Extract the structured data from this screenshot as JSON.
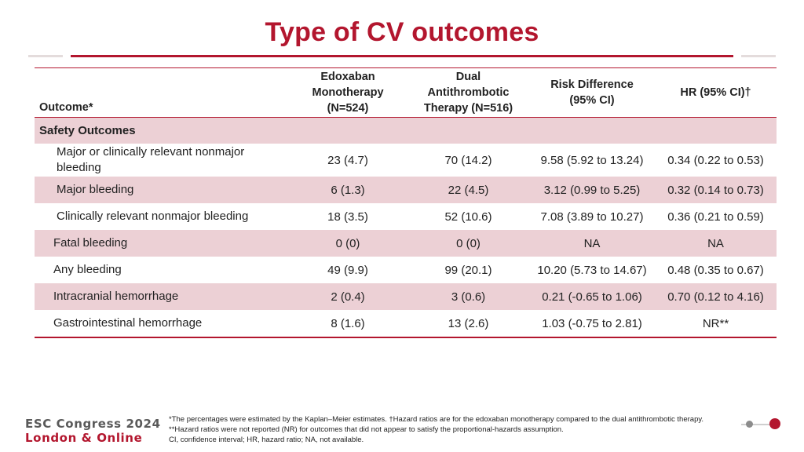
{
  "title": "Type of CV outcomes",
  "headers": {
    "outcome": "Outcome*",
    "edoxaban": [
      "Edoxaban",
      "Monotherapy",
      "(N=524)"
    ],
    "dat": [
      "Dual",
      "Antithrombotic",
      "Therapy (N=516)"
    ],
    "risk": [
      "Risk Difference",
      "(95% CI)"
    ],
    "hr": "HR (95% CI)†"
  },
  "section": "Safety Outcomes",
  "rows": [
    {
      "outcome": "Major or clinically relevant nonmajor bleeding",
      "edoxaban": "23 (4.7)",
      "dat": "70 (14.2)",
      "risk": "9.58 (5.92 to 13.24)",
      "hr": "0.34 (0.22 to 0.53)"
    },
    {
      "outcome": "Major bleeding",
      "edoxaban": "6 (1.3)",
      "dat": "22 (4.5)",
      "risk": "3.12 (0.99 to 5.25)",
      "hr": "0.32 (0.14 to 0.73)"
    },
    {
      "outcome": "Clinically relevant nonmajor bleeding",
      "edoxaban": "18 (3.5)",
      "dat": "52 (10.6)",
      "risk": "7.08 (3.89 to 10.27)",
      "hr": "0.36 (0.21 to 0.59)"
    },
    {
      "outcome": "Fatal bleeding",
      "edoxaban": "0 (0)",
      "dat": "0 (0)",
      "risk": "NA",
      "hr": "NA"
    },
    {
      "outcome": "Any bleeding",
      "edoxaban": "49 (9.9)",
      "dat": "99 (20.1)",
      "risk": "10.20 (5.73 to 14.67)",
      "hr": "0.48 (0.35 to 0.67)"
    },
    {
      "outcome": "Intracranial hemorrhage",
      "edoxaban": "2 (0.4)",
      "dat": "3 (0.6)",
      "risk": "0.21 (-0.65 to 1.06)",
      "hr": "0.70 (0.12 to 4.16)"
    },
    {
      "outcome": "Gastrointestinal hemorrhage",
      "edoxaban": "8 (1.6)",
      "dat": "13 (2.6)",
      "risk": "1.03 (-0.75 to 2.81)",
      "hr": "NR**"
    }
  ],
  "footnotes": [
    "*The percentages were estimated by the Kaplan–Meier estimates.  †Hazard ratios are for the edoxaban monotherapy compared to the dual antithrombotic therapy.",
    "**Hazard ratios were not reported (NR) for outcomes that did not appear to satisfy the proportional-hazards assumption.",
    "CI, confidence interval; HR, hazard ratio; NA, not available."
  ],
  "logo": {
    "line1": "ESC Congress 2024",
    "line2": "London & Online"
  },
  "colors": {
    "accent": "#b3162e",
    "shade": "#ecd0d5"
  }
}
